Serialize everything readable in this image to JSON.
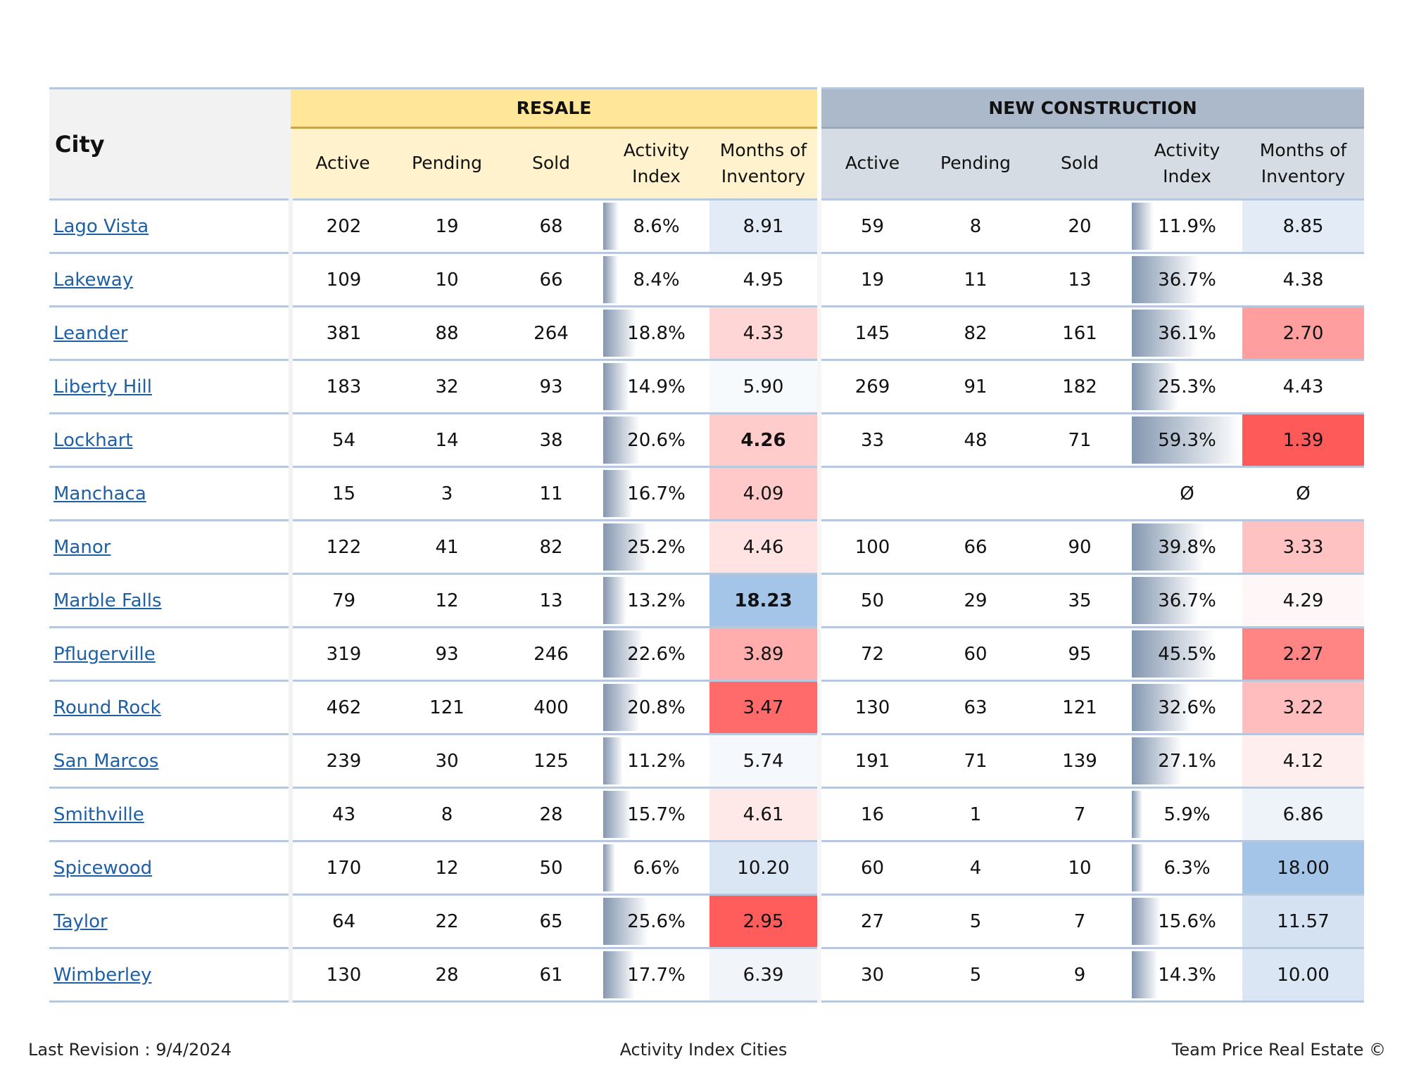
{
  "headers": {
    "city": "City",
    "resale": "RESALE",
    "new_construction": "NEW CONSTRUCTION",
    "cols": [
      "Active",
      "Pending",
      "Sold",
      "Activity Index",
      "Months of Inventory"
    ]
  },
  "colors": {
    "resale_header": "#ffe699",
    "resale_subheader": "#fff2cc",
    "new_header": "#acb9ca",
    "new_subheader": "#d6dce4",
    "link": "#1f5fa6",
    "activity_bar": "#8497b0"
  },
  "rows": [
    {
      "city": "Lago Vista",
      "resale": {
        "active": "202",
        "pending": "19",
        "sold": "68",
        "activity_index": "8.6%",
        "ai_value": 8.6,
        "moi": "8.91",
        "moi_color": "#e2ebf6"
      },
      "new": {
        "active": "59",
        "pending": "8",
        "sold": "20",
        "activity_index": "11.9%",
        "ai_value": 11.9,
        "moi": "8.85",
        "moi_color": "#e2ebf6"
      }
    },
    {
      "city": "Lakeway",
      "resale": {
        "active": "109",
        "pending": "10",
        "sold": "66",
        "activity_index": "8.4%",
        "ai_value": 8.4,
        "moi": "4.95",
        "moi_color": "#ffffff"
      },
      "new": {
        "active": "19",
        "pending": "11",
        "sold": "13",
        "activity_index": "36.7%",
        "ai_value": 36.7,
        "moi": "4.38",
        "moi_color": "#ffffff"
      }
    },
    {
      "city": "Leander",
      "resale": {
        "active": "381",
        "pending": "88",
        "sold": "264",
        "activity_index": "18.8%",
        "ai_value": 18.8,
        "moi": "4.33",
        "moi_color": "#ffd6d6"
      },
      "new": {
        "active": "145",
        "pending": "82",
        "sold": "161",
        "activity_index": "36.1%",
        "ai_value": 36.1,
        "moi": "2.70",
        "moi_color": "#ff9e9e"
      }
    },
    {
      "city": "Liberty Hill",
      "resale": {
        "active": "183",
        "pending": "32",
        "sold": "93",
        "activity_index": "14.9%",
        "ai_value": 14.9,
        "moi": "5.90",
        "moi_color": "#f7fafd"
      },
      "new": {
        "active": "269",
        "pending": "91",
        "sold": "182",
        "activity_index": "25.3%",
        "ai_value": 25.3,
        "moi": "4.43",
        "moi_color": "#ffffff"
      }
    },
    {
      "city": "Lockhart",
      "resale": {
        "active": "54",
        "pending": "14",
        "sold": "38",
        "activity_index": "20.6%",
        "ai_value": 20.6,
        "moi": "4.26",
        "moi_color": "#ffcccc",
        "moi_bold": true
      },
      "new": {
        "active": "33",
        "pending": "48",
        "sold": "71",
        "activity_index": "59.3%",
        "ai_value": 59.3,
        "moi": "1.39",
        "moi_color": "#ff5a5a"
      }
    },
    {
      "city": "Manchaca",
      "resale": {
        "active": "15",
        "pending": "3",
        "sold": "11",
        "activity_index": "16.7%",
        "ai_value": 16.7,
        "moi": "4.09",
        "moi_color": "#ffc9c9"
      },
      "new": {
        "active": "",
        "pending": "",
        "sold": "",
        "activity_index": "Ø",
        "ai_value": 0,
        "moi": "Ø",
        "moi_color": "#ffffff"
      }
    },
    {
      "city": "Manor",
      "resale": {
        "active": "122",
        "pending": "41",
        "sold": "82",
        "activity_index": "25.2%",
        "ai_value": 25.2,
        "moi": "4.46",
        "moi_color": "#ffe3e3"
      },
      "new": {
        "active": "100",
        "pending": "66",
        "sold": "90",
        "activity_index": "39.8%",
        "ai_value": 39.8,
        "moi": "3.33",
        "moi_color": "#ffc2c2"
      }
    },
    {
      "city": "Marble Falls",
      "resale": {
        "active": "79",
        "pending": "12",
        "sold": "13",
        "activity_index": "13.2%",
        "ai_value": 13.2,
        "moi": "18.23",
        "moi_color": "#a5c5e8",
        "moi_bold": true
      },
      "new": {
        "active": "50",
        "pending": "29",
        "sold": "35",
        "activity_index": "36.7%",
        "ai_value": 36.7,
        "moi": "4.29",
        "moi_color": "#fff7f7"
      }
    },
    {
      "city": "Pflugerville",
      "resale": {
        "active": "319",
        "pending": "93",
        "sold": "246",
        "activity_index": "22.6%",
        "ai_value": 22.6,
        "moi": "3.89",
        "moi_color": "#ffadad"
      },
      "new": {
        "active": "72",
        "pending": "60",
        "sold": "95",
        "activity_index": "45.5%",
        "ai_value": 45.5,
        "moi": "2.27",
        "moi_color": "#ff8585"
      }
    },
    {
      "city": "Round Rock",
      "resale": {
        "active": "462",
        "pending": "121",
        "sold": "400",
        "activity_index": "20.8%",
        "ai_value": 20.8,
        "moi": "3.47",
        "moi_color": "#ff6b6b"
      },
      "new": {
        "active": "130",
        "pending": "63",
        "sold": "121",
        "activity_index": "32.6%",
        "ai_value": 32.6,
        "moi": "3.22",
        "moi_color": "#ffbdbd"
      }
    },
    {
      "city": "San Marcos",
      "resale": {
        "active": "239",
        "pending": "30",
        "sold": "125",
        "activity_index": "11.2%",
        "ai_value": 11.2,
        "moi": "5.74",
        "moi_color": "#f5f8fc"
      },
      "new": {
        "active": "191",
        "pending": "71",
        "sold": "139",
        "activity_index": "27.1%",
        "ai_value": 27.1,
        "moi": "4.12",
        "moi_color": "#ffeeee"
      }
    },
    {
      "city": "Smithville",
      "resale": {
        "active": "43",
        "pending": "8",
        "sold": "28",
        "activity_index": "15.7%",
        "ai_value": 15.7,
        "moi": "4.61",
        "moi_color": "#ffe8e8"
      },
      "new": {
        "active": "16",
        "pending": "1",
        "sold": "7",
        "activity_index": "5.9%",
        "ai_value": 5.9,
        "moi": "6.86",
        "moi_color": "#eef3f9"
      }
    },
    {
      "city": "Spicewood",
      "resale": {
        "active": "170",
        "pending": "12",
        "sold": "50",
        "activity_index": "6.6%",
        "ai_value": 6.6,
        "moi": "10.20",
        "moi_color": "#dae6f4"
      },
      "new": {
        "active": "60",
        "pending": "4",
        "sold": "10",
        "activity_index": "6.3%",
        "ai_value": 6.3,
        "moi": "18.00",
        "moi_color": "#a5c5e8"
      }
    },
    {
      "city": "Taylor",
      "resale": {
        "active": "64",
        "pending": "22",
        "sold": "65",
        "activity_index": "25.6%",
        "ai_value": 25.6,
        "moi": "2.95",
        "moi_color": "#ff5c5c"
      },
      "new": {
        "active": "27",
        "pending": "5",
        "sold": "7",
        "activity_index": "15.6%",
        "ai_value": 15.6,
        "moi": "11.57",
        "moi_color": "#d4e2f2"
      }
    },
    {
      "city": "Wimberley",
      "resale": {
        "active": "130",
        "pending": "28",
        "sold": "61",
        "activity_index": "17.7%",
        "ai_value": 17.7,
        "moi": "6.39",
        "moi_color": "#f1f5fa"
      },
      "new": {
        "active": "30",
        "pending": "5",
        "sold": "9",
        "activity_index": "14.3%",
        "ai_value": 14.3,
        "moi": "10.00",
        "moi_color": "#dae6f4"
      }
    }
  ],
  "footer": {
    "left": "Last Revision : 9/4/2024",
    "center": "Activity Index Cities",
    "right": "Team Price Real Estate ©"
  }
}
